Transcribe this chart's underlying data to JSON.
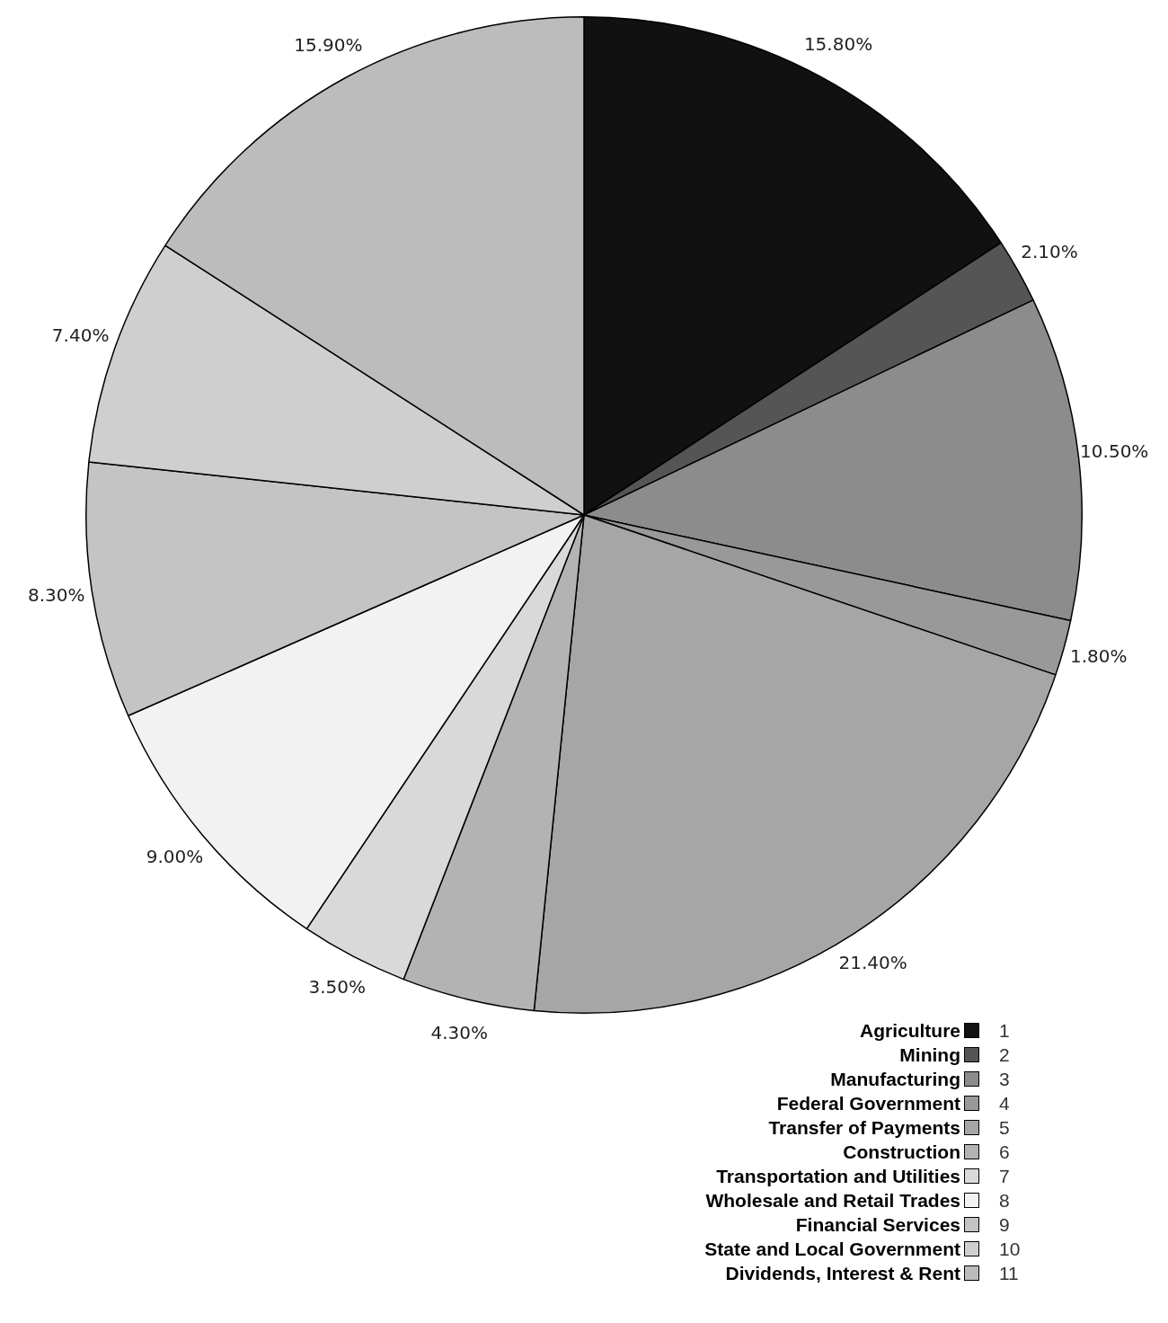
{
  "chart_data": {
    "type": "pie",
    "categories": [
      "Agriculture",
      "Mining",
      "Manufacturing",
      "Federal Government",
      "Transfer of Payments",
      "Construction",
      "Transportation and Utilities",
      "Wholesale and Retail Trades",
      "Financial Services",
      "State and Local Government",
      "Dividends, Interest & Rent"
    ],
    "values": [
      15.8,
      2.1,
      10.5,
      1.8,
      21.4,
      4.3,
      3.5,
      9.0,
      8.3,
      7.4,
      15.9
    ],
    "value_labels": [
      "15.80%",
      "2.10%",
      "10.50%",
      "1.80%",
      "21.40%",
      "4.30%",
      "3.50%",
      "9.00%",
      "8.30%",
      "7.40%",
      "15.90%"
    ],
    "colors": [
      "#111111",
      "#555555",
      "#8c8c8c",
      "#999999",
      "#a6a6a6",
      "#b3b3b3",
      "#d9d9d9",
      "#f2f2f2",
      "#c4c4c4",
      "#cfcfcf",
      "#bcbcbc"
    ],
    "annotations": [
      "1",
      "2",
      "3",
      "4",
      "5",
      "6",
      "7",
      "8",
      "9",
      "10",
      "11"
    ],
    "legend": "bottom right"
  }
}
